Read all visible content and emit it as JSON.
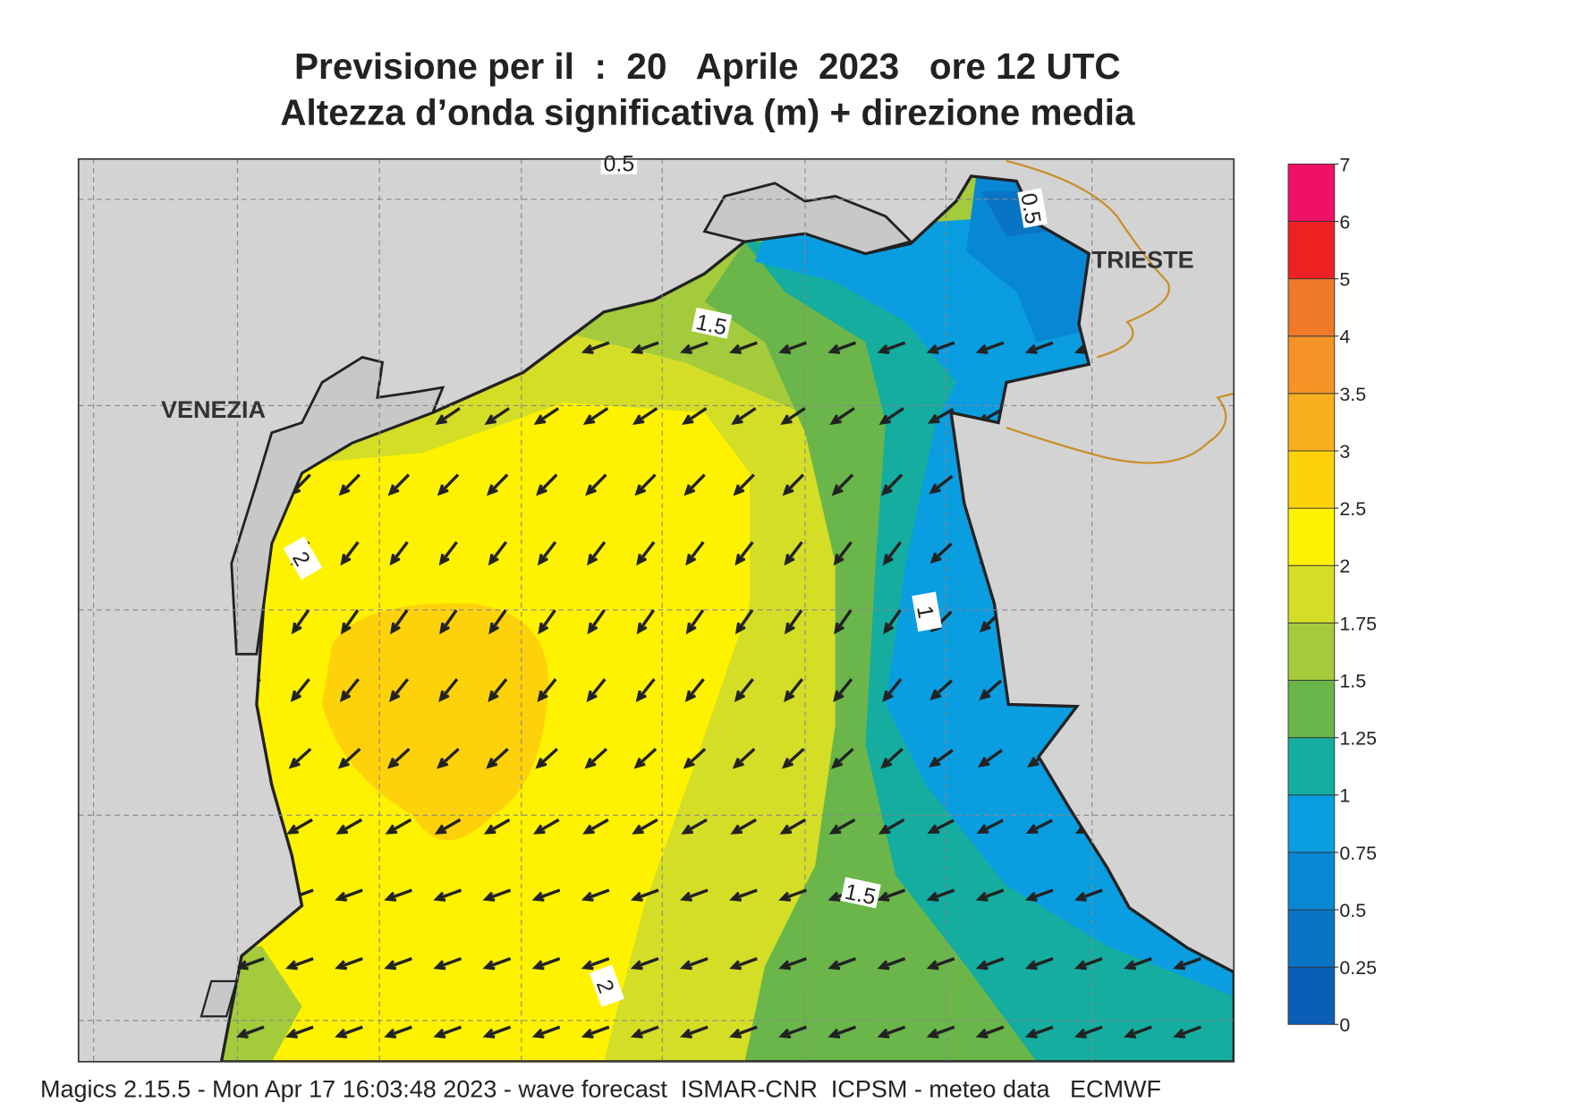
{
  "header": {
    "title": "Previsione per il  :  20   Aprile  2023   ore 12 UTC",
    "subtitle": "Altezza d’onda significativa (m) + direzione media"
  },
  "places": [
    {
      "label": "VENEZIA"
    },
    {
      "label": "TRIESTE"
    }
  ],
  "contour_labels": [
    1.5,
    2,
    1,
    1.5,
    2,
    0.5,
    0.5
  ],
  "legend": {
    "ticks": [
      0,
      0.25,
      0.5,
      0.75,
      1,
      1.25,
      1.5,
      1.75,
      2,
      2.5,
      3,
      3.5,
      4,
      5,
      6,
      7
    ],
    "colors": [
      "#0a5fb4",
      "#0a74c4",
      "#0888d4",
      "#0a9de0",
      "#14ada0",
      "#6ab64a",
      "#a3cb3b",
      "#d4de27",
      "#fff200",
      "#fdd20a",
      "#f9b020",
      "#f49426",
      "#f07a2a",
      "#ee2222",
      "#ee1166"
    ]
  },
  "footer": "Magics 2.15.5 - Mon Apr 17 16:03:48 2023 - wave forecast  ISMAR-CNR  ICPSM - meteo data   ECMWF"
}
